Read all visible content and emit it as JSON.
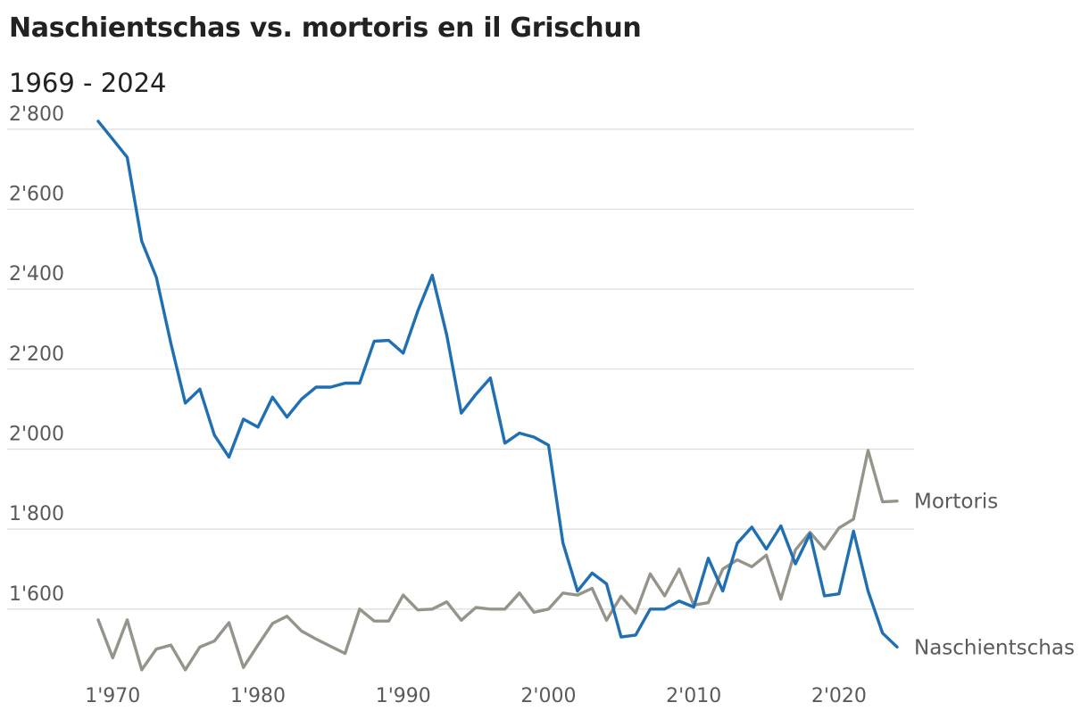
{
  "chart_data": {
    "type": "line",
    "title": "Naschientschas vs. mortoris en il Grischun",
    "subtitle": "1969 - 2024",
    "xlabel": "",
    "ylabel": "",
    "xlim": [
      1969,
      2024
    ],
    "ylim": [
      1450,
      2860
    ],
    "grid": true,
    "legend": "direct labels at line ends",
    "y_ticks": [
      {
        "value": 1600,
        "label": "1'600"
      },
      {
        "value": 1800,
        "label": "1'800"
      },
      {
        "value": 2000,
        "label": "2'000"
      },
      {
        "value": 2200,
        "label": "2'200"
      },
      {
        "value": 2400,
        "label": "2'400"
      },
      {
        "value": 2600,
        "label": "2'600"
      },
      {
        "value": 2800,
        "label": "2'800"
      }
    ],
    "x_ticks": [
      {
        "value": 1970,
        "label": "1'970"
      },
      {
        "value": 1980,
        "label": "1'980"
      },
      {
        "value": 1990,
        "label": "1'990"
      },
      {
        "value": 2000,
        "label": "2'000"
      },
      {
        "value": 2010,
        "label": "2'010"
      },
      {
        "value": 2020,
        "label": "2'020"
      }
    ],
    "x": [
      1969,
      1970,
      1971,
      1972,
      1973,
      1974,
      1975,
      1976,
      1977,
      1978,
      1979,
      1980,
      1981,
      1982,
      1983,
      1984,
      1985,
      1986,
      1987,
      1988,
      1989,
      1990,
      1991,
      1992,
      1993,
      1994,
      1995,
      1996,
      1997,
      1998,
      1999,
      2000,
      2001,
      2002,
      2003,
      2004,
      2005,
      2006,
      2007,
      2008,
      2009,
      2010,
      2011,
      2012,
      2013,
      2014,
      2015,
      2016,
      2017,
      2018,
      2019,
      2020,
      2021,
      2022,
      2023,
      2024
    ],
    "series": [
      {
        "name": "Naschientschas",
        "color": "#1f6fb2",
        "values": [
          2820,
          2775,
          2730,
          2520,
          2430,
          2265,
          2115,
          2150,
          2035,
          1980,
          2075,
          2055,
          2130,
          2080,
          2125,
          2155,
          2155,
          2165,
          2165,
          2270,
          2272,
          2240,
          2345,
          2435,
          2285,
          2090,
          2137,
          2178,
          2015,
          2040,
          2030,
          2010,
          1765,
          1645,
          1690,
          1663,
          1530,
          1535,
          1600,
          1600,
          1620,
          1605,
          1727,
          1645,
          1765,
          1805,
          1750,
          1808,
          1713,
          1788,
          1633,
          1638,
          1795,
          1645,
          1540,
          1505
        ]
      },
      {
        "name": "Mortoris",
        "color": "#96948a",
        "values": [
          1573,
          1478,
          1573,
          1448,
          1500,
          1510,
          1448,
          1505,
          1520,
          1566,
          1454,
          1510,
          1564,
          1582,
          1545,
          1525,
          1507,
          1489,
          1600,
          1570,
          1570,
          1635,
          1598,
          1600,
          1618,
          1572,
          1604,
          1600,
          1600,
          1640,
          1592,
          1600,
          1640,
          1635,
          1652,
          1572,
          1632,
          1590,
          1688,
          1633,
          1700,
          1610,
          1616,
          1700,
          1723,
          1706,
          1735,
          1625,
          1748,
          1792,
          1750,
          1803,
          1825,
          1997,
          1868,
          1870
        ]
      }
    ]
  }
}
